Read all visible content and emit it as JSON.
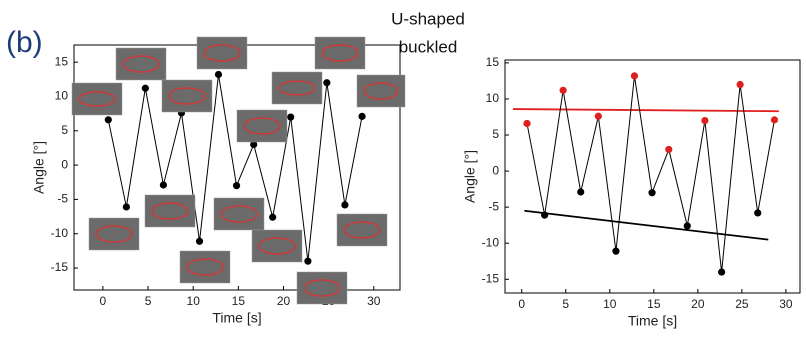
{
  "label": "(b)",
  "annotation": [
    "U-shaped",
    "buckled"
  ],
  "chart_data": [
    {
      "type": "line",
      "xlabel": "Time [s]",
      "ylabel": "Angle [°]",
      "x": [
        0.6,
        2.6,
        4.7,
        6.7,
        8.7,
        10.7,
        12.8,
        14.8,
        16.7,
        18.8,
        20.8,
        22.7,
        24.8,
        26.8,
        28.7
      ],
      "values": [
        6.6,
        -6.1,
        11.2,
        -2.9,
        7.6,
        -11.1,
        13.2,
        -3,
        3,
        -7.6,
        7,
        -14,
        12,
        -5.8,
        7.1
      ],
      "color": "#000000",
      "xlim": [
        -3.2,
        32.9
      ],
      "ylim": [
        -18.2,
        17.5
      ],
      "xticks": [
        0,
        5,
        10,
        15,
        20,
        25,
        30
      ],
      "yticks": [
        -15,
        -10,
        -5,
        0,
        5,
        10,
        15
      ]
    },
    {
      "type": "line",
      "xlabel": "Time [s]",
      "ylabel": "Angle [°]",
      "x": [
        0.6,
        2.6,
        4.7,
        6.7,
        8.7,
        10.7,
        12.8,
        14.8,
        16.7,
        18.8,
        20.8,
        22.7,
        24.8,
        26.8,
        28.7
      ],
      "values": [
        6.6,
        -6.1,
        11.2,
        -2.9,
        7.6,
        -11.1,
        13.2,
        -3,
        3,
        -7.6,
        7,
        -14,
        12,
        -5.8,
        7.1
      ],
      "color": "#000000",
      "point_colors": [
        "#e02020",
        "#000000",
        "#e02020",
        "#000000",
        "#e02020",
        "#000000",
        "#e02020",
        "#000000",
        "#e02020",
        "#000000",
        "#e02020",
        "#000000",
        "#e02020",
        "#000000",
        "#e02020"
      ],
      "lines": [
        {
          "color": "#e02020",
          "x": [
            -1,
            29.2
          ],
          "values": [
            8.6,
            8.3
          ]
        },
        {
          "color": "#000000",
          "x": [
            0.3,
            28
          ],
          "values": [
            -5.5,
            -9.5
          ]
        }
      ],
      "xlim": [
        -1.9,
        31.6
      ],
      "ylim": [
        -16.9,
        15.4
      ],
      "xticks": [
        0,
        5,
        10,
        15,
        20,
        25,
        30
      ],
      "yticks": [
        -15,
        -10,
        -5,
        0,
        5,
        10,
        15
      ]
    }
  ]
}
